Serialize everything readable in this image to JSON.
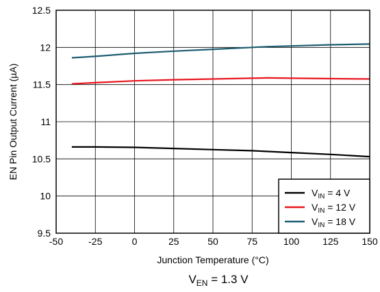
{
  "chart_data": {
    "type": "line",
    "xlabel": "Junction Temperature (°C)",
    "ylabel": "EN Pin Output Current (µA)",
    "caption": {
      "main": "V",
      "sub": "EN",
      "rest": " = 1.3 V"
    },
    "xlim": [
      -50,
      150
    ],
    "ylim": [
      9.5,
      12.5
    ],
    "xticks": [
      "-50",
      "-25",
      "0",
      "25",
      "50",
      "75",
      "100",
      "125",
      "150"
    ],
    "yticks": [
      "9.5",
      "10",
      "10.5",
      "11",
      "11.5",
      "12",
      "12.5"
    ],
    "grid": true,
    "legend_position": "bottom-right",
    "series": [
      {
        "label": {
          "main": "V",
          "sub": "IN",
          "rest": " = 4 V"
        },
        "color": "#000000",
        "x": [
          -40,
          -25,
          0,
          25,
          50,
          75,
          85,
          100,
          125,
          150
        ],
        "y": [
          10.66,
          10.66,
          10.655,
          10.64,
          10.625,
          10.61,
          10.6,
          10.585,
          10.56,
          10.53
        ]
      },
      {
        "label": {
          "main": "V",
          "sub": "IN",
          "rest": " = 12 V"
        },
        "color": "#e8141d",
        "x": [
          -40,
          -25,
          0,
          25,
          50,
          75,
          85,
          100,
          125,
          150
        ],
        "y": [
          11.51,
          11.525,
          11.55,
          11.565,
          11.575,
          11.585,
          11.59,
          11.585,
          11.58,
          11.575
        ]
      },
      {
        "label": {
          "main": "V",
          "sub": "IN",
          "rest": " = 18 V"
        },
        "color": "#1c5c70",
        "x": [
          -40,
          -25,
          0,
          25,
          50,
          75,
          85,
          100,
          125,
          150
        ],
        "y": [
          11.86,
          11.88,
          11.92,
          11.95,
          11.975,
          12.0,
          12.01,
          12.02,
          12.035,
          12.045
        ]
      }
    ]
  }
}
